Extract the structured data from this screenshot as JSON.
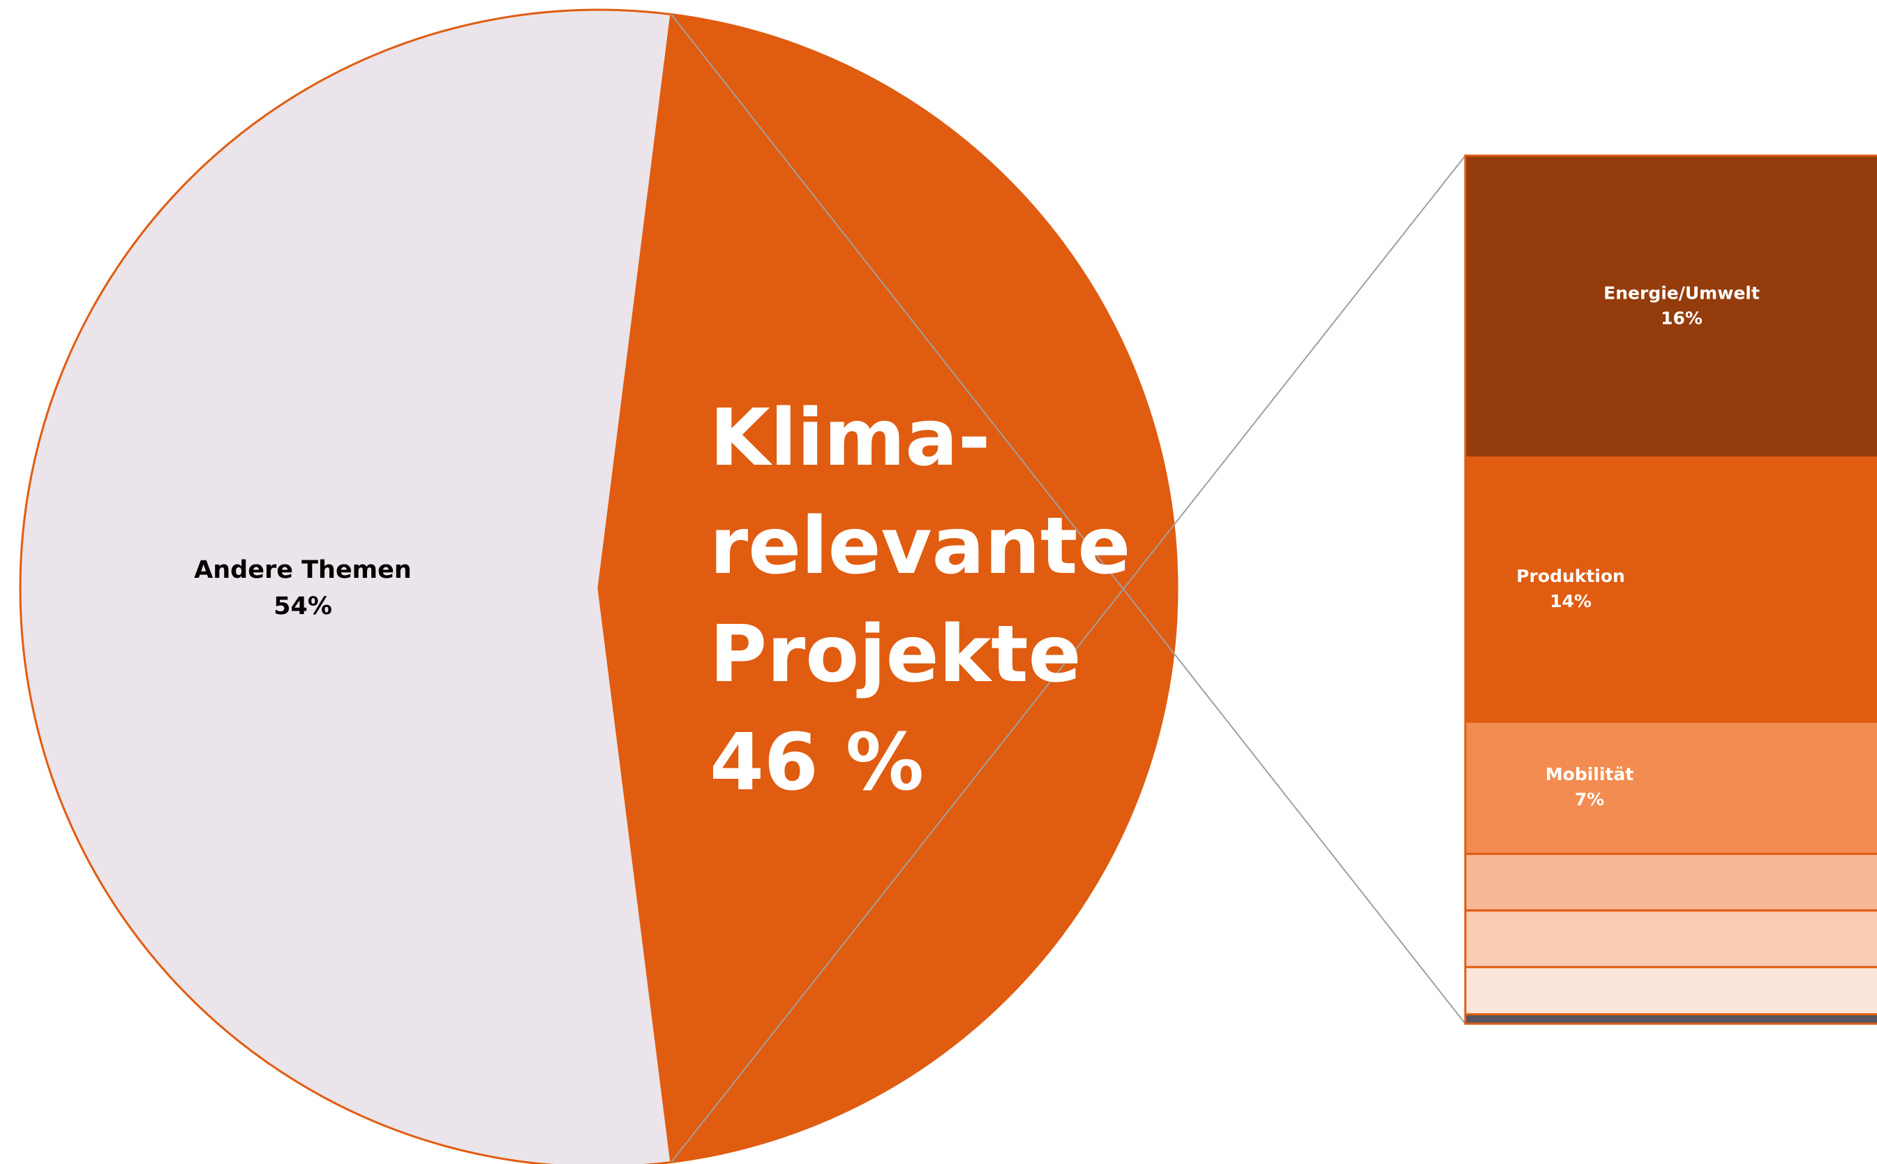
{
  "chart_data": [
    {
      "type": "pie",
      "categories": [
        "Andere Themen",
        "Klima-relevante Projekte"
      ],
      "values": [
        54,
        46
      ],
      "value_labels": [
        "54%",
        "46 %"
      ],
      "colors": [
        "#ebe4ea",
        "#e05c10"
      ]
    },
    {
      "type": "bar",
      "categories": [
        "Energie/Umwelt",
        "Produktion",
        "Mobilität",
        null,
        null,
        null,
        null
      ],
      "values": [
        16,
        14,
        7,
        3,
        3,
        2.5,
        0.5
      ],
      "value_labels": [
        "16%",
        "14%",
        "7%",
        null,
        null,
        null,
        null
      ],
      "colors": [
        "#943c0c",
        "#e05c10",
        "#f28c50",
        "#f7b896",
        "#f9cdb3",
        "#fce6da",
        "#55555f"
      ]
    }
  ]
}
